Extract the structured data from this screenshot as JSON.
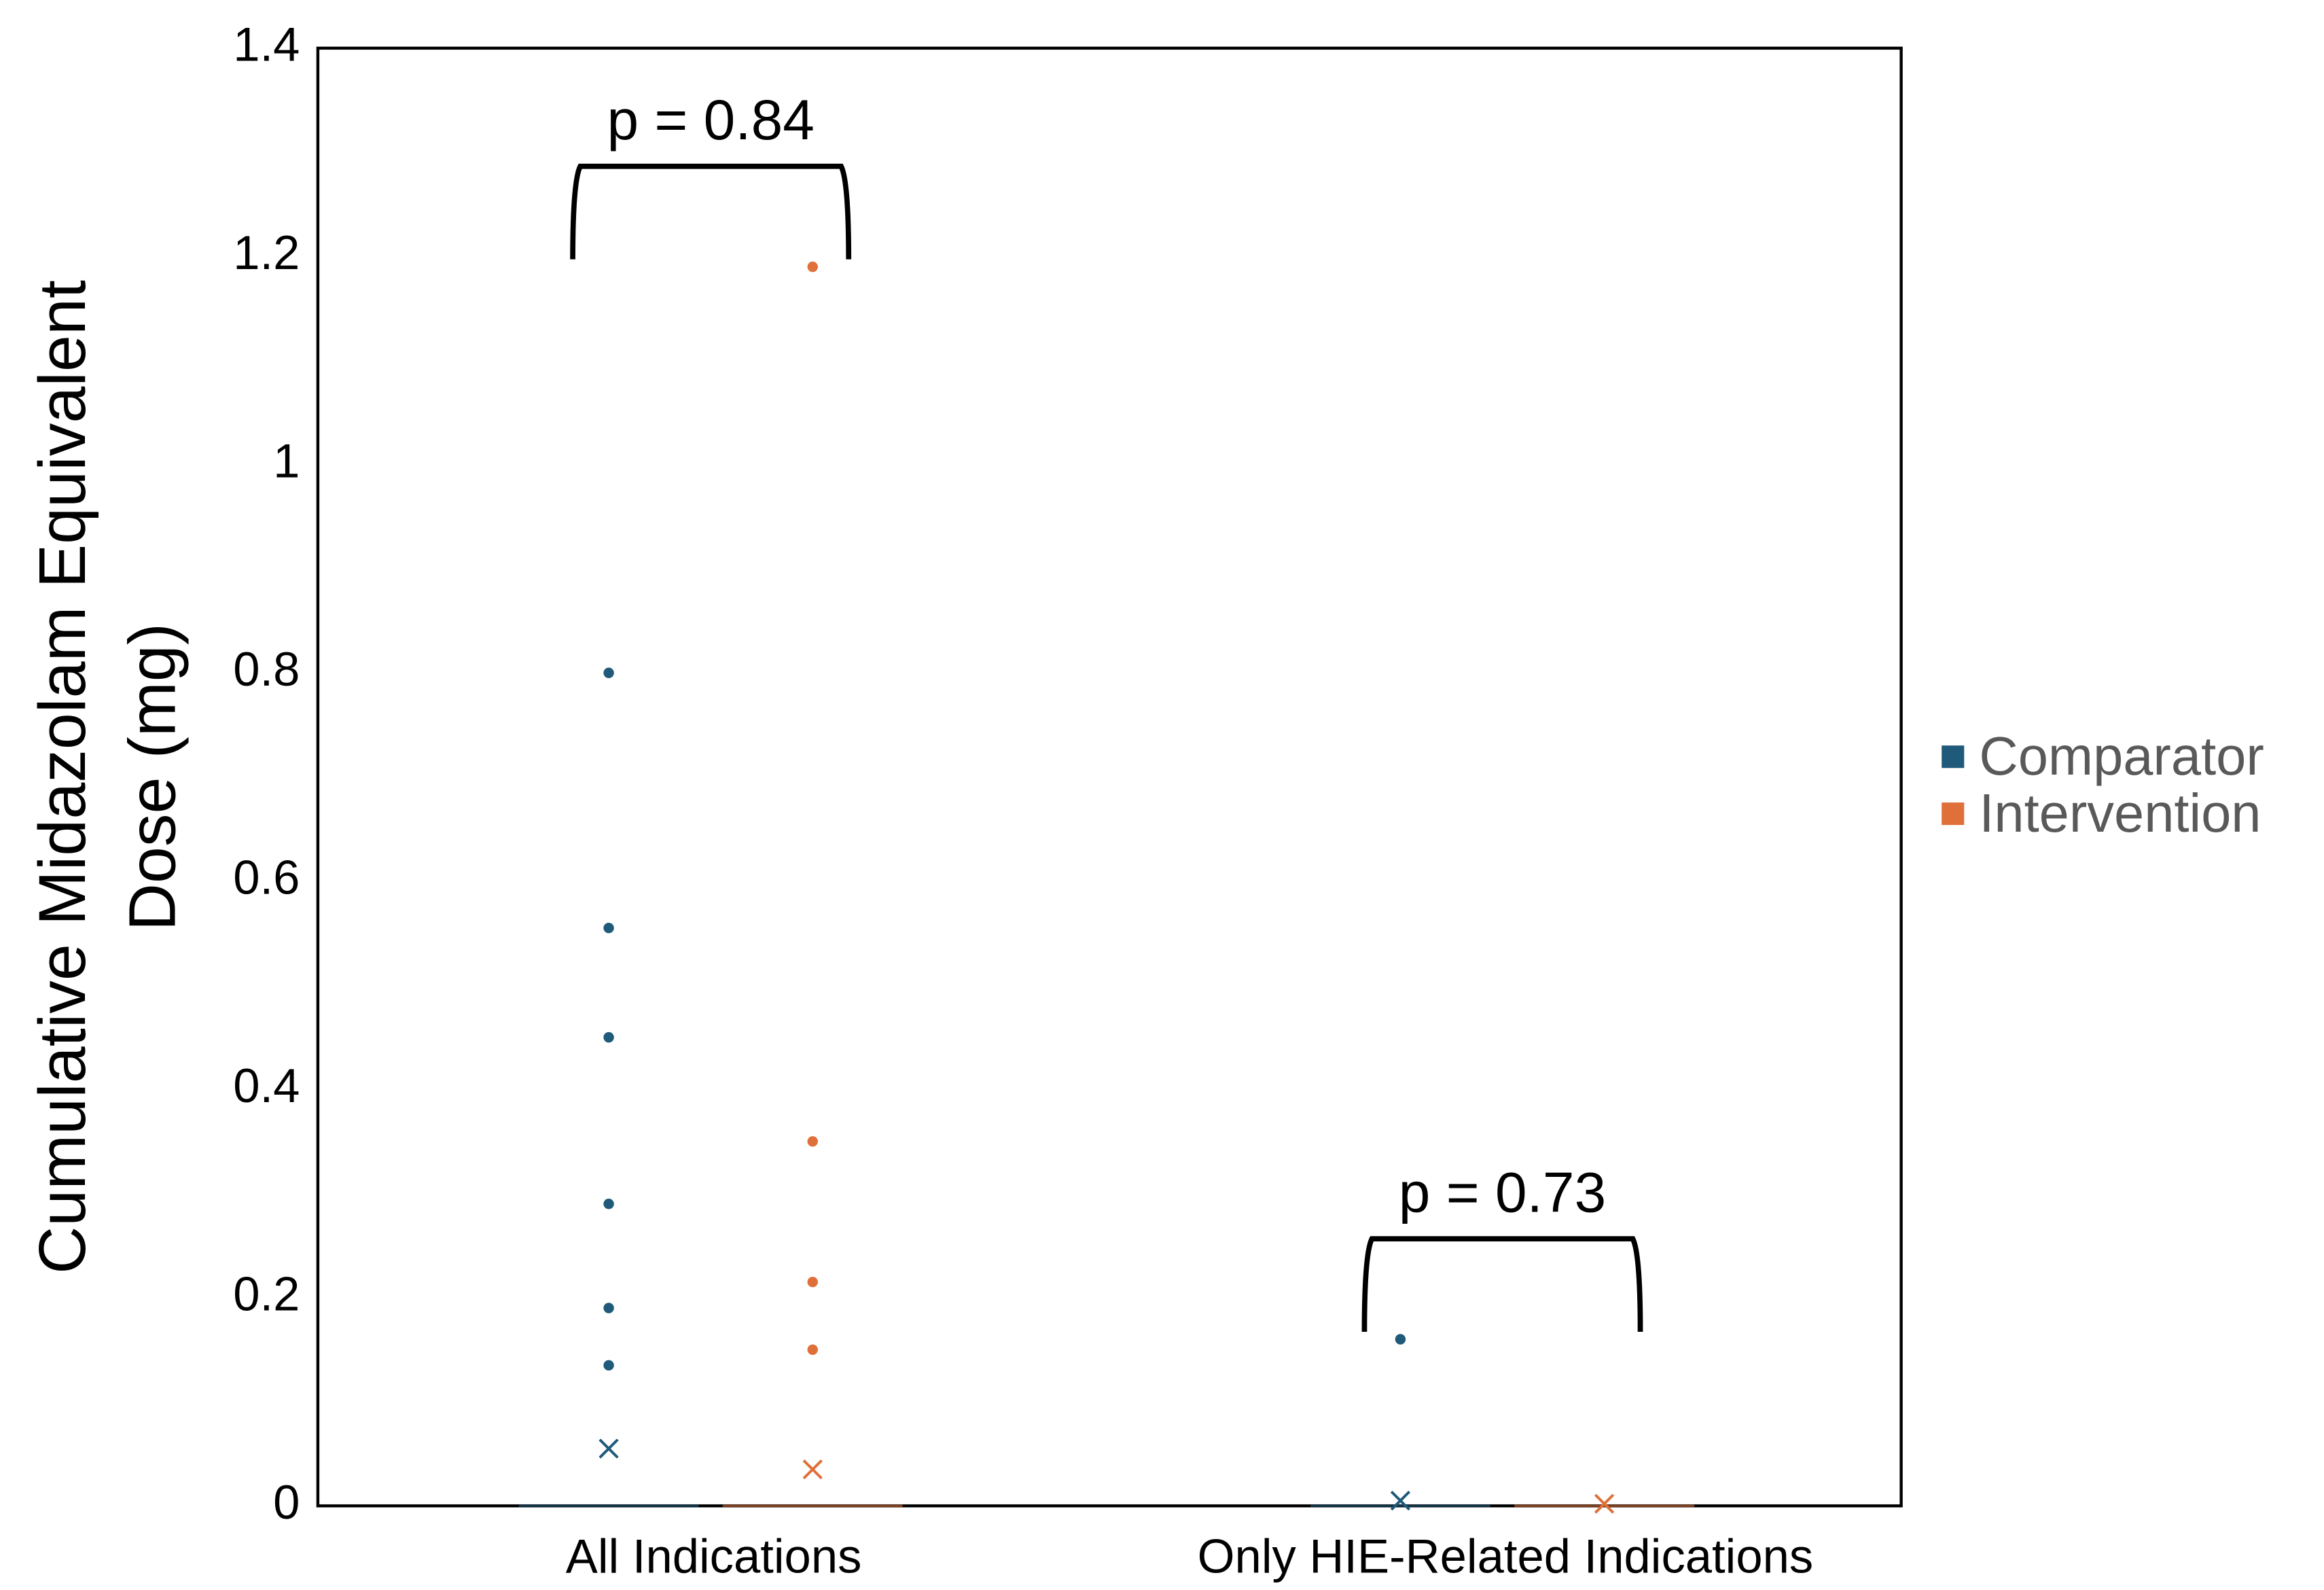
{
  "chart_data": {
    "type": "box",
    "categories": [
      "All Indications",
      "Only HIE-Related Indications"
    ],
    "y_label": [
      "Cumulative Midazolam Equivalent",
      "Dose (mg)"
    ],
    "ylim": [
      0,
      1.4
    ],
    "yticks": [
      0,
      0.2,
      0.4,
      0.6,
      0.8,
      1,
      1.2,
      1.4
    ],
    "legend": "right",
    "series": [
      {
        "name": "Comparator",
        "color": "#1f5a7a",
        "median": [
          0,
          0
        ],
        "mean": [
          0.055,
          0.005
        ],
        "outliers": [
          [
            0.8,
            0.555,
            0.45,
            0.29,
            0.19,
            0.135
          ],
          [
            0.16
          ]
        ]
      },
      {
        "name": "Intervention",
        "color": "#e0703a",
        "median": [
          0,
          0
        ],
        "mean": [
          0.035,
          0.002
        ],
        "outliers": [
          [
            1.19,
            0.35,
            0.215,
            0.15
          ],
          []
        ]
      }
    ],
    "annotations": [
      {
        "text": "p = 0.84",
        "category": 0
      },
      {
        "text": "p = 0.73",
        "category": 1
      }
    ]
  }
}
